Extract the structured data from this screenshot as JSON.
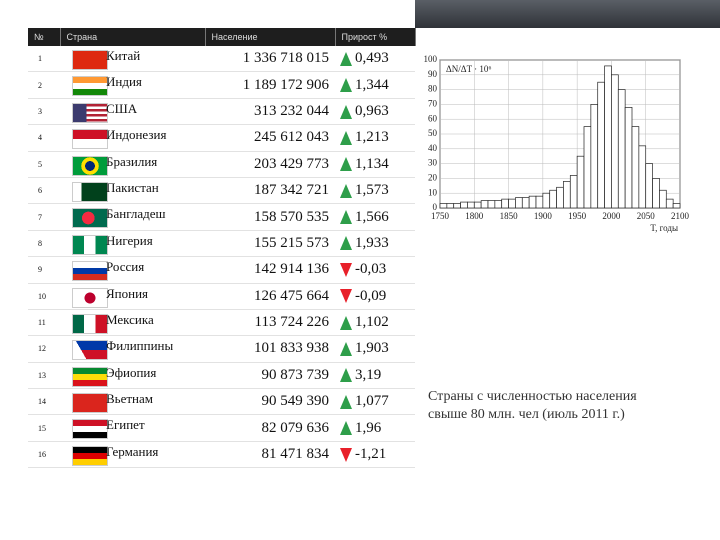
{
  "table": {
    "header": [
      "№",
      "Страна",
      "Население",
      "Прирост %"
    ],
    "rows": [
      [
        "1",
        "Китай",
        "1 336 718 015",
        "0,493"
      ],
      [
        "2",
        "Индия",
        "1 189 172 906",
        "1,344"
      ],
      [
        "3",
        "США",
        "313 232 044",
        "0,963"
      ],
      [
        "4",
        "Индонезия",
        "245 612 043",
        "1,213"
      ],
      [
        "5",
        "Бразилия",
        "203 429 773",
        "1,134"
      ],
      [
        "6",
        "Пакистан",
        "187 342 721",
        "1,573"
      ],
      [
        "7",
        "Бангладеш",
        "158 570 535",
        "1,566"
      ],
      [
        "8",
        "Нигерия",
        "155 215 573",
        "1,933"
      ],
      [
        "9",
        "Россия",
        "142 914 136",
        "-0,03"
      ],
      [
        "10",
        "Япония",
        "126 475 664",
        "-0,09"
      ],
      [
        "11",
        "Мексика",
        "113 724 226",
        "1,102"
      ],
      [
        "12",
        "Филиппины",
        "101 833 938",
        "1,903"
      ],
      [
        "13",
        "Эфиопия",
        "90 873 739",
        "3,19"
      ],
      [
        "14",
        "Вьетнам",
        "90 549 390",
        "1,077"
      ],
      [
        "15",
        "Египет",
        "82 079 636",
        "1,96"
      ],
      [
        "16",
        "Германия",
        "81 471 834",
        "-1,21"
      ]
    ]
  },
  "caption": "Страны с численностью населения свыше 80 млн. чел (июль 2011 г.)",
  "chart_data": {
    "type": "histogram",
    "ylabel": "ΔN/ΔT · 10⁶",
    "xlabel": "T, годы",
    "bins": [
      1750,
      1760,
      1770,
      1780,
      1790,
      1800,
      1810,
      1820,
      1830,
      1840,
      1850,
      1860,
      1870,
      1880,
      1890,
      1900,
      1910,
      1920,
      1930,
      1940,
      1950,
      1960,
      1970,
      1980,
      1990,
      2000,
      2010,
      2020,
      2030,
      2040,
      2050,
      2060,
      2070,
      2080,
      2090,
      2100
    ],
    "values": [
      3,
      3,
      3,
      4,
      4,
      4,
      5,
      5,
      5,
      6,
      6,
      7,
      7,
      8,
      8,
      10,
      12,
      14,
      18,
      22,
      35,
      55,
      70,
      85,
      96,
      90,
      80,
      68,
      55,
      42,
      30,
      20,
      12,
      6,
      3
    ],
    "color": "#ffffff",
    "xlim": [
      1750,
      2100
    ],
    "xticks": [
      1750,
      1800,
      1850,
      1900,
      1950,
      2000,
      2050,
      2100
    ],
    "ylim": [
      0,
      100
    ],
    "yticks": [
      0,
      10,
      20,
      30,
      40,
      50,
      60,
      70,
      80,
      90,
      100
    ],
    "grid": true
  }
}
